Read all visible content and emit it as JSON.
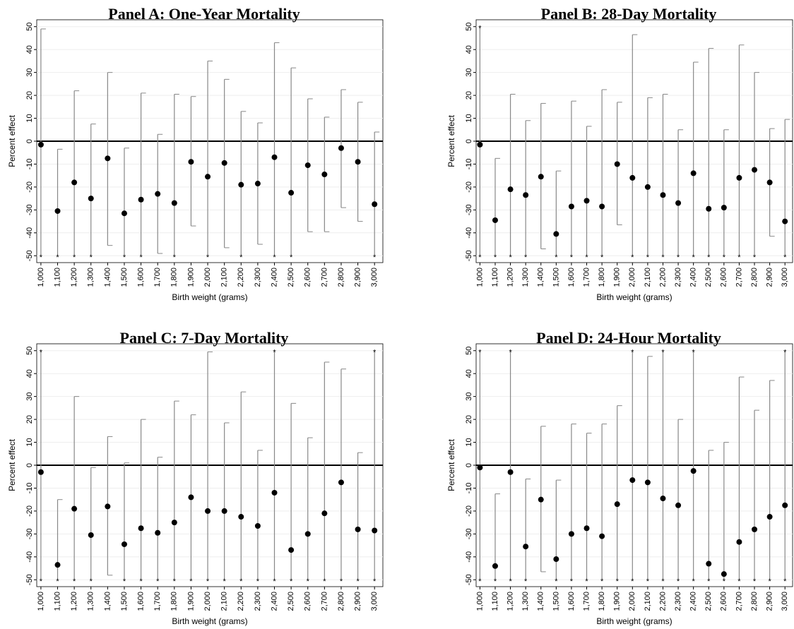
{
  "chart_data": [
    {
      "type": "errorbar",
      "title": "Panel A: One-Year Mortality",
      "x_label": "Birth weight (grams)",
      "y_label": "Percent effect",
      "x": [
        1000,
        1100,
        1200,
        1300,
        1400,
        1500,
        1600,
        1700,
        1800,
        1900,
        2000,
        2100,
        2200,
        2300,
        2400,
        2500,
        2600,
        2700,
        2800,
        2900,
        3000
      ],
      "values": [
        -1.5,
        -30.5,
        -18,
        -25,
        -7.5,
        -31.5,
        -25.5,
        -23,
        -27,
        -9,
        -15.5,
        -9.5,
        -19,
        -18.5,
        -7,
        -22.5,
        -10.5,
        -14.5,
        -3,
        -9,
        -27.5
      ],
      "ci_upper": [
        49,
        -3.5,
        22,
        7.5,
        30,
        -3,
        21,
        3,
        20.5,
        19.5,
        35,
        27,
        13,
        8,
        43,
        32,
        18.5,
        10.5,
        22.5,
        17,
        4
      ],
      "ci_lower": [
        null,
        null,
        null,
        null,
        -45.5,
        null,
        null,
        -49,
        null,
        -37,
        null,
        -46.5,
        null,
        -45,
        null,
        null,
        -39.5,
        -39.5,
        -29,
        -35,
        null
      ],
      "truncation_marker": "*",
      "reference_line": 0,
      "grid": true,
      "xlim": [
        975,
        3050
      ],
      "ylim": [
        -53,
        53
      ],
      "yticks": [
        -50,
        -40,
        -30,
        -20,
        -10,
        0,
        10,
        20,
        30,
        40,
        50
      ],
      "xticks": [
        {
          "value": 1000,
          "label": "1,000"
        },
        {
          "value": 1100,
          "label": "1,100"
        },
        {
          "value": 1200,
          "label": "1,200"
        },
        {
          "value": 1300,
          "label": "1,300"
        },
        {
          "value": 1400,
          "label": "1,400"
        },
        {
          "value": 1500,
          "label": "1,500"
        },
        {
          "value": 1600,
          "label": "1,600"
        },
        {
          "value": 1700,
          "label": "1,700"
        },
        {
          "value": 1800,
          "label": "1,800"
        },
        {
          "value": 1900,
          "label": "1,900"
        },
        {
          "value": 2000,
          "label": "2,000"
        },
        {
          "value": 2100,
          "label": "2,100"
        },
        {
          "value": 2200,
          "label": "2,200"
        },
        {
          "value": 2300,
          "label": "2,300"
        },
        {
          "value": 2400,
          "label": "2,400"
        },
        {
          "value": 2500,
          "label": "2,500"
        },
        {
          "value": 2600,
          "label": "2,600"
        },
        {
          "value": 2700,
          "label": "2,700"
        },
        {
          "value": 2800,
          "label": "2,800"
        },
        {
          "value": 2900,
          "label": "2,900"
        },
        {
          "value": 3000,
          "label": "3,000"
        }
      ]
    },
    {
      "type": "errorbar",
      "title": "Panel B: 28-Day Mortality",
      "x_label": "Birth weight (grams)",
      "y_label": "Percent effect",
      "x": [
        1000,
        1100,
        1200,
        1300,
        1400,
        1500,
        1600,
        1700,
        1800,
        1900,
        2000,
        2100,
        2200,
        2300,
        2400,
        2500,
        2600,
        2700,
        2800,
        2900,
        3000
      ],
      "values": [
        -1.5,
        -34.5,
        -21,
        -23.5,
        -15.5,
        -40.5,
        -28.5,
        -26,
        -28.5,
        -10,
        -16,
        -20,
        -23.5,
        -27,
        -14,
        -29.5,
        -29,
        -16,
        -12.5,
        -18,
        -35
      ],
      "ci_upper": [
        null,
        -7.5,
        20.5,
        9,
        16.5,
        -13,
        17.5,
        6.5,
        22.5,
        17,
        46.5,
        19,
        20.5,
        5,
        34.5,
        40.5,
        5,
        42,
        30,
        5.5,
        9.5
      ],
      "ci_lower": [
        null,
        null,
        null,
        null,
        -47,
        null,
        null,
        null,
        null,
        -36.5,
        null,
        null,
        null,
        null,
        null,
        null,
        null,
        null,
        null,
        -41.5,
        null
      ],
      "truncation_marker": "*",
      "reference_line": 0,
      "grid": true,
      "xlim": [
        975,
        3050
      ],
      "ylim": [
        -53,
        53
      ],
      "yticks": [
        -50,
        -40,
        -30,
        -20,
        -10,
        0,
        10,
        20,
        30,
        40,
        50
      ],
      "xticks": [
        {
          "value": 1000,
          "label": "1,000"
        },
        {
          "value": 1100,
          "label": "1,100"
        },
        {
          "value": 1200,
          "label": "1,200"
        },
        {
          "value": 1300,
          "label": "1,300"
        },
        {
          "value": 1400,
          "label": "1,400"
        },
        {
          "value": 1500,
          "label": "1,500"
        },
        {
          "value": 1600,
          "label": "1,600"
        },
        {
          "value": 1700,
          "label": "1,700"
        },
        {
          "value": 1800,
          "label": "1,800"
        },
        {
          "value": 1900,
          "label": "1,900"
        },
        {
          "value": 2000,
          "label": "2,000"
        },
        {
          "value": 2100,
          "label": "2,100"
        },
        {
          "value": 2200,
          "label": "2,200"
        },
        {
          "value": 2300,
          "label": "2,300"
        },
        {
          "value": 2400,
          "label": "2,400"
        },
        {
          "value": 2500,
          "label": "2,500"
        },
        {
          "value": 2600,
          "label": "2,600"
        },
        {
          "value": 2700,
          "label": "2,700"
        },
        {
          "value": 2800,
          "label": "2,800"
        },
        {
          "value": 2900,
          "label": "2,900"
        },
        {
          "value": 3000,
          "label": "3,000"
        }
      ]
    },
    {
      "type": "errorbar",
      "title": "Panel C: 7-Day Mortality",
      "x_label": "Birth weight (grams)",
      "y_label": "Percent effect",
      "x": [
        1000,
        1100,
        1200,
        1300,
        1400,
        1500,
        1600,
        1700,
        1800,
        1900,
        2000,
        2100,
        2200,
        2300,
        2400,
        2500,
        2600,
        2700,
        2800,
        2900,
        3000
      ],
      "values": [
        -3,
        -43.5,
        -19,
        -30.5,
        -18,
        -34.5,
        -27.5,
        -29.5,
        -25,
        -14,
        -20,
        -20,
        -22.5,
        -26.5,
        -12,
        -37,
        -30,
        -21,
        -7.5,
        -28,
        -28.5
      ],
      "ci_upper": [
        null,
        -15,
        30,
        -1,
        12.5,
        1,
        20,
        3.5,
        28,
        22,
        49.5,
        18.5,
        32,
        6.5,
        null,
        27,
        12,
        45,
        42,
        5.5,
        null
      ],
      "ci_lower": [
        null,
        null,
        null,
        null,
        -48,
        null,
        null,
        null,
        null,
        null,
        null,
        null,
        null,
        null,
        null,
        null,
        null,
        null,
        null,
        null,
        null
      ],
      "truncation_marker": "*",
      "reference_line": 0,
      "grid": true,
      "xlim": [
        975,
        3050
      ],
      "ylim": [
        -53,
        53
      ],
      "yticks": [
        -50,
        -40,
        -30,
        -20,
        -10,
        0,
        10,
        20,
        30,
        40,
        50
      ],
      "xticks": [
        {
          "value": 1000,
          "label": "1,000"
        },
        {
          "value": 1100,
          "label": "1,100"
        },
        {
          "value": 1200,
          "label": "1,200"
        },
        {
          "value": 1300,
          "label": "1,300"
        },
        {
          "value": 1400,
          "label": "1,400"
        },
        {
          "value": 1500,
          "label": "1,500"
        },
        {
          "value": 1600,
          "label": "1,600"
        },
        {
          "value": 1700,
          "label": "1,700"
        },
        {
          "value": 1800,
          "label": "1,800"
        },
        {
          "value": 1900,
          "label": "1,900"
        },
        {
          "value": 2000,
          "label": "2,000"
        },
        {
          "value": 2100,
          "label": "2,100"
        },
        {
          "value": 2200,
          "label": "2,200"
        },
        {
          "value": 2300,
          "label": "2,300"
        },
        {
          "value": 2400,
          "label": "2,400"
        },
        {
          "value": 2500,
          "label": "2,500"
        },
        {
          "value": 2600,
          "label": "2,600"
        },
        {
          "value": 2700,
          "label": "2,700"
        },
        {
          "value": 2800,
          "label": "2,800"
        },
        {
          "value": 2900,
          "label": "2,900"
        },
        {
          "value": 3000,
          "label": "3,000"
        }
      ]
    },
    {
      "type": "errorbar",
      "title": "Panel D: 24-Hour Mortality",
      "x_label": "Birth weight (grams)",
      "y_label": "Percent effect",
      "x": [
        1000,
        1100,
        1200,
        1300,
        1400,
        1500,
        1600,
        1700,
        1800,
        1900,
        2000,
        2100,
        2200,
        2300,
        2400,
        2500,
        2600,
        2700,
        2800,
        2900,
        3000
      ],
      "values": [
        -1,
        -44,
        -3,
        -35.5,
        -15,
        -41,
        -30,
        -27.5,
        -31,
        -17,
        -6.5,
        -7.5,
        -14.5,
        -17.5,
        -2.5,
        -43,
        -47.5,
        -33.5,
        -28,
        -22.5,
        -17.5
      ],
      "ci_upper": [
        null,
        -12.5,
        null,
        -6,
        17,
        -6.5,
        18,
        14,
        18,
        26,
        null,
        47.5,
        null,
        20,
        null,
        6.5,
        10,
        38.5,
        24,
        37,
        null
      ],
      "ci_lower": [
        null,
        null,
        null,
        null,
        -46.5,
        null,
        null,
        null,
        null,
        null,
        null,
        null,
        null,
        null,
        null,
        null,
        null,
        null,
        null,
        null,
        null
      ],
      "truncation_marker": "*",
      "reference_line": 0,
      "grid": true,
      "xlim": [
        975,
        3050
      ],
      "ylim": [
        -53,
        53
      ],
      "yticks": [
        -50,
        -40,
        -30,
        -20,
        -10,
        0,
        10,
        20,
        30,
        40,
        50
      ],
      "xticks": [
        {
          "value": 1000,
          "label": "1,000"
        },
        {
          "value": 1100,
          "label": "1,100"
        },
        {
          "value": 1200,
          "label": "1,200"
        },
        {
          "value": 1300,
          "label": "1,300"
        },
        {
          "value": 1400,
          "label": "1,400"
        },
        {
          "value": 1500,
          "label": "1,500"
        },
        {
          "value": 1600,
          "label": "1,600"
        },
        {
          "value": 1700,
          "label": "1,700"
        },
        {
          "value": 1800,
          "label": "1,800"
        },
        {
          "value": 1900,
          "label": "1,900"
        },
        {
          "value": 2000,
          "label": "2,000"
        },
        {
          "value": 2100,
          "label": "2,100"
        },
        {
          "value": 2200,
          "label": "2,200"
        },
        {
          "value": 2300,
          "label": "2,300"
        },
        {
          "value": 2400,
          "label": "2,400"
        },
        {
          "value": 2500,
          "label": "2,500"
        },
        {
          "value": 2600,
          "label": "2,600"
        },
        {
          "value": 2700,
          "label": "2,700"
        },
        {
          "value": 2800,
          "label": "2,800"
        },
        {
          "value": 2900,
          "label": "2,900"
        },
        {
          "value": 3000,
          "label": "3,000"
        }
      ]
    }
  ]
}
